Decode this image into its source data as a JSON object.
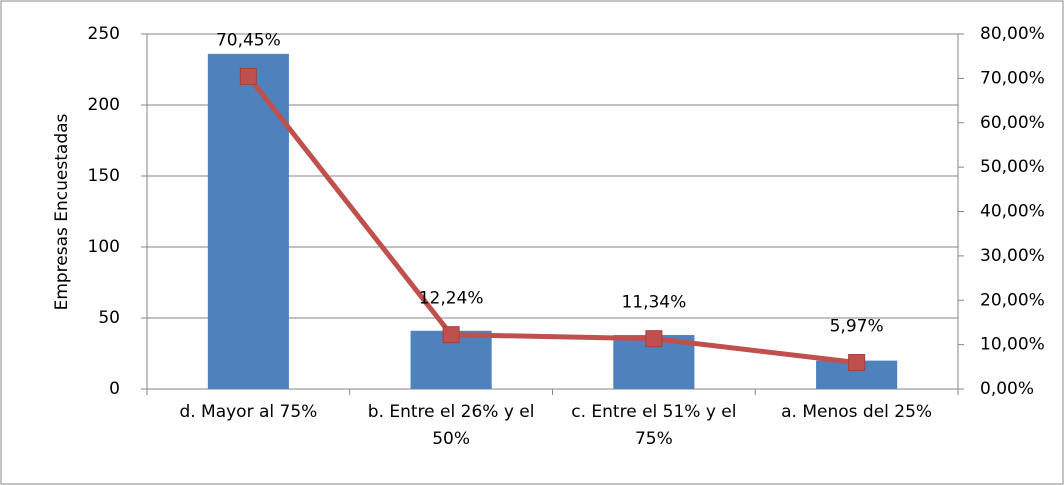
{
  "chart_data": {
    "type": "bar",
    "y_label": "Empresas Encuestadas",
    "categories": [
      "d. Mayor al 75%",
      "b. Entre el 26% y el 50%",
      "c. Entre el 51% y el 75%",
      "a. Menos del 25%"
    ],
    "series": [
      {
        "type": "bar",
        "color": "#4f81bd",
        "values": [
          236,
          41,
          38,
          20
        ]
      },
      {
        "type": "line",
        "axis": "y2",
        "color": "#c0504d",
        "values": [
          70.45,
          12.24,
          11.34,
          5.97
        ],
        "value_labels": [
          "70,45%",
          "12,24%",
          "11,34%",
          "5,97%"
        ]
      }
    ],
    "ylim": [
      0,
      250
    ],
    "yticks": [
      0,
      50,
      100,
      150,
      200,
      250
    ],
    "y2lim": [
      0,
      80
    ],
    "y2ticks": [
      {
        "value": 0,
        "label": "0,00%"
      },
      {
        "value": 10,
        "label": "10,00%"
      },
      {
        "value": 20,
        "label": "20,00%"
      },
      {
        "value": 30,
        "label": "30,00%"
      },
      {
        "value": 40,
        "label": "40,00%"
      },
      {
        "value": 50,
        "label": "50,00%"
      },
      {
        "value": 60,
        "label": "60,00%"
      },
      {
        "value": 70,
        "label": "70,00%"
      },
      {
        "value": 80,
        "label": "80,00%"
      }
    ],
    "grid": true
  }
}
